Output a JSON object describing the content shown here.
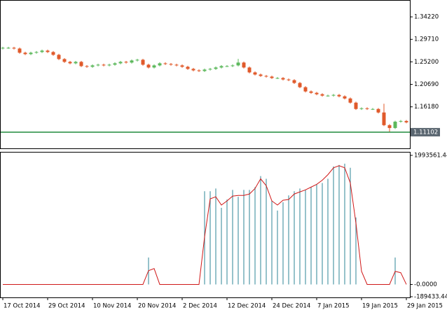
{
  "chart_data": [
    {
      "type": "candlestick",
      "open": [
        1.279,
        1.2802,
        1.2802,
        1.2787,
        1.2703,
        1.2675,
        1.2703,
        1.2717,
        1.2745,
        1.2717,
        1.2661,
        1.2576,
        1.252,
        1.2491,
        1.252,
        1.2435,
        1.2421,
        1.2449,
        1.2463,
        1.2449,
        1.2463,
        1.2491,
        1.252,
        1.2506,
        1.2548,
        1.2562,
        1.2463,
        1.2407,
        1.2449,
        1.2491,
        1.2477,
        1.2463,
        1.2449,
        1.2421,
        1.2379,
        1.235,
        1.2336,
        1.2365,
        1.2379,
        1.2407,
        1.2435,
        1.2435,
        1.2449,
        1.2506,
        1.2407,
        1.2309,
        1.2266,
        1.2238,
        1.2224,
        1.2196,
        1.2196,
        1.2167,
        1.2153,
        1.2097,
        1.2012,
        1.1927,
        1.1899,
        1.1871,
        1.1843,
        1.1843,
        1.1857,
        1.1829,
        1.1786,
        1.1702,
        1.1575,
        1.1589,
        1.1575,
        1.1575,
        1.1505,
        1.1251,
        1.1194,
        1.1321,
        1.1335
      ],
      "high": [
        1.2822,
        1.2822,
        1.2822,
        1.2807,
        1.2723,
        1.2723,
        1.2737,
        1.2765,
        1.2765,
        1.2737,
        1.2681,
        1.2596,
        1.254,
        1.254,
        1.254,
        1.2455,
        1.2469,
        1.2483,
        1.2483,
        1.2483,
        1.2511,
        1.254,
        1.254,
        1.2568,
        1.2582,
        1.2582,
        1.2483,
        1.2469,
        1.2511,
        1.2511,
        1.2497,
        1.2483,
        1.2469,
        1.2441,
        1.2399,
        1.237,
        1.2385,
        1.2399,
        1.2427,
        1.2455,
        1.2455,
        1.2469,
        1.258,
        1.2526,
        1.2427,
        1.2329,
        1.2286,
        1.2258,
        1.2244,
        1.2216,
        1.2216,
        1.2187,
        1.2173,
        1.2117,
        1.2032,
        1.1947,
        1.1919,
        1.1891,
        1.1863,
        1.1877,
        1.1877,
        1.1849,
        1.1806,
        1.1722,
        1.1609,
        1.1609,
        1.1595,
        1.1595,
        1.168,
        1.1271,
        1.1341,
        1.1355,
        1.1355
      ],
      "low": [
        1.277,
        1.2782,
        1.2767,
        1.2683,
        1.2655,
        1.2655,
        1.2683,
        1.2697,
        1.2697,
        1.2641,
        1.2556,
        1.25,
        1.2471,
        1.2471,
        1.2415,
        1.2401,
        1.2401,
        1.2429,
        1.2429,
        1.2429,
        1.2443,
        1.2471,
        1.2486,
        1.2486,
        1.2528,
        1.2443,
        1.2387,
        1.2387,
        1.2429,
        1.2457,
        1.2443,
        1.2429,
        1.2401,
        1.2359,
        1.233,
        1.2316,
        1.2316,
        1.2345,
        1.2359,
        1.2387,
        1.2415,
        1.2415,
        1.2429,
        1.2387,
        1.2289,
        1.2246,
        1.2218,
        1.2204,
        1.2176,
        1.2176,
        1.2147,
        1.2133,
        1.2077,
        1.1992,
        1.1907,
        1.1879,
        1.1851,
        1.1823,
        1.1823,
        1.1823,
        1.1809,
        1.1766,
        1.1682,
        1.1555,
        1.1555,
        1.1555,
        1.1555,
        1.1485,
        1.1231,
        1.112,
        1.1174,
        1.1301,
        1.1287
      ],
      "close": [
        1.2802,
        1.2802,
        1.2787,
        1.2703,
        1.2675,
        1.2703,
        1.2717,
        1.2745,
        1.2717,
        1.2661,
        1.2576,
        1.252,
        1.2491,
        1.252,
        1.2435,
        1.2421,
        1.2449,
        1.2463,
        1.2449,
        1.2463,
        1.2491,
        1.252,
        1.2506,
        1.2548,
        1.2562,
        1.2463,
        1.2407,
        1.2449,
        1.2491,
        1.2477,
        1.2463,
        1.2449,
        1.2421,
        1.2379,
        1.235,
        1.2336,
        1.2365,
        1.2379,
        1.2407,
        1.2435,
        1.2435,
        1.2449,
        1.2506,
        1.2407,
        1.2309,
        1.2266,
        1.2238,
        1.2224,
        1.2196,
        1.2196,
        1.2167,
        1.2153,
        1.2097,
        1.2012,
        1.1927,
        1.1899,
        1.1871,
        1.1843,
        1.1843,
        1.1857,
        1.1829,
        1.1786,
        1.1702,
        1.1575,
        1.1589,
        1.1575,
        1.1575,
        1.1505,
        1.1251,
        1.1194,
        1.1321,
        1.1335,
        1.1307
      ],
      "up_color": "#5cb85c",
      "down_color": "#e0592a",
      "current_price": 1.11102,
      "current_price_color": "#1f8a3c",
      "ylim": [
        1.0786,
        1.3746
      ],
      "yticks": [
        {
          "value": 1.1618,
          "label": "1.16180"
        },
        {
          "value": 1.2069,
          "label": "1.20690"
        },
        {
          "value": 1.252,
          "label": "1.25200"
        },
        {
          "value": 1.2971,
          "label": "1.29710"
        },
        {
          "value": 1.3422,
          "label": "1.34220"
        }
      ]
    },
    {
      "type": "bar",
      "categories": [
        "17 Oct 2014",
        null,
        null,
        null,
        null,
        null,
        null,
        null,
        "29 Oct 2014",
        null,
        null,
        null,
        null,
        null,
        null,
        null,
        "10 Nov 2014",
        null,
        null,
        null,
        null,
        null,
        null,
        null,
        "20 Nov 2014",
        null,
        null,
        null,
        null,
        null,
        null,
        null,
        "2 Dec 2014",
        null,
        null,
        null,
        null,
        null,
        null,
        null,
        "12 Dec 2014",
        null,
        null,
        null,
        null,
        null,
        null,
        null,
        "24 Dec 2014",
        null,
        null,
        null,
        null,
        null,
        null,
        null,
        "7 Jan 2015",
        null,
        null,
        null,
        null,
        null,
        null,
        null,
        "19 Jan 2015",
        null,
        null,
        null,
        null,
        null,
        null,
        null,
        "29 Jan 2015"
      ],
      "series": [
        {
          "type": "bar",
          "color": "#4f9aa8",
          "values": [
            0,
            0,
            0,
            0,
            0,
            0,
            0,
            0,
            0,
            0,
            0,
            0,
            0,
            0,
            0,
            0,
            0,
            0,
            0,
            0,
            0,
            0,
            0,
            0,
            0,
            0,
            415800,
            0,
            0,
            0,
            0,
            0,
            0,
            0,
            0,
            0,
            1439200,
            1439200,
            1481900,
            1183400,
            1311300,
            1460600,
            1353900,
            1460600,
            1460600,
            1503200,
            1673800,
            1631100,
            1290000,
            1140700,
            1268700,
            1375300,
            1439200,
            1481900,
            1460600,
            1503200,
            1545800,
            1567200,
            1631100,
            1823000,
            1844400,
            1865700,
            1801700,
            1034100,
            0,
            0,
            0,
            0,
            0,
            0,
            415800,
            0,
            0
          ]
        },
        {
          "type": "line",
          "color": "#d01818",
          "values": [
            0,
            0,
            0,
            0,
            0,
            0,
            0,
            0,
            0,
            0,
            0,
            0,
            0,
            0,
            0,
            0,
            0,
            0,
            0,
            0,
            0,
            0,
            0,
            0,
            0,
            0,
            213200,
            245200,
            0,
            0,
            0,
            0,
            0,
            0,
            0,
            0,
            735600,
            1322000,
            1353900,
            1226000,
            1290000,
            1364600,
            1375300,
            1375300,
            1396600,
            1481900,
            1631100,
            1524500,
            1290000,
            1226000,
            1300600,
            1311300,
            1396600,
            1428600,
            1460600,
            1503200,
            1545800,
            1609800,
            1695100,
            1801700,
            1833700,
            1801700,
            1567200,
            948800,
            202600,
            0,
            0,
            0,
            0,
            0,
            202600,
            181200,
            0
          ]
        }
      ],
      "ylim": [
        -189433.44,
        1993561.44
      ],
      "yticks": [
        -189433.44,
        {
          "value": 0,
          "label": "-0.0000"
        },
        1993561.44
      ]
    }
  ]
}
